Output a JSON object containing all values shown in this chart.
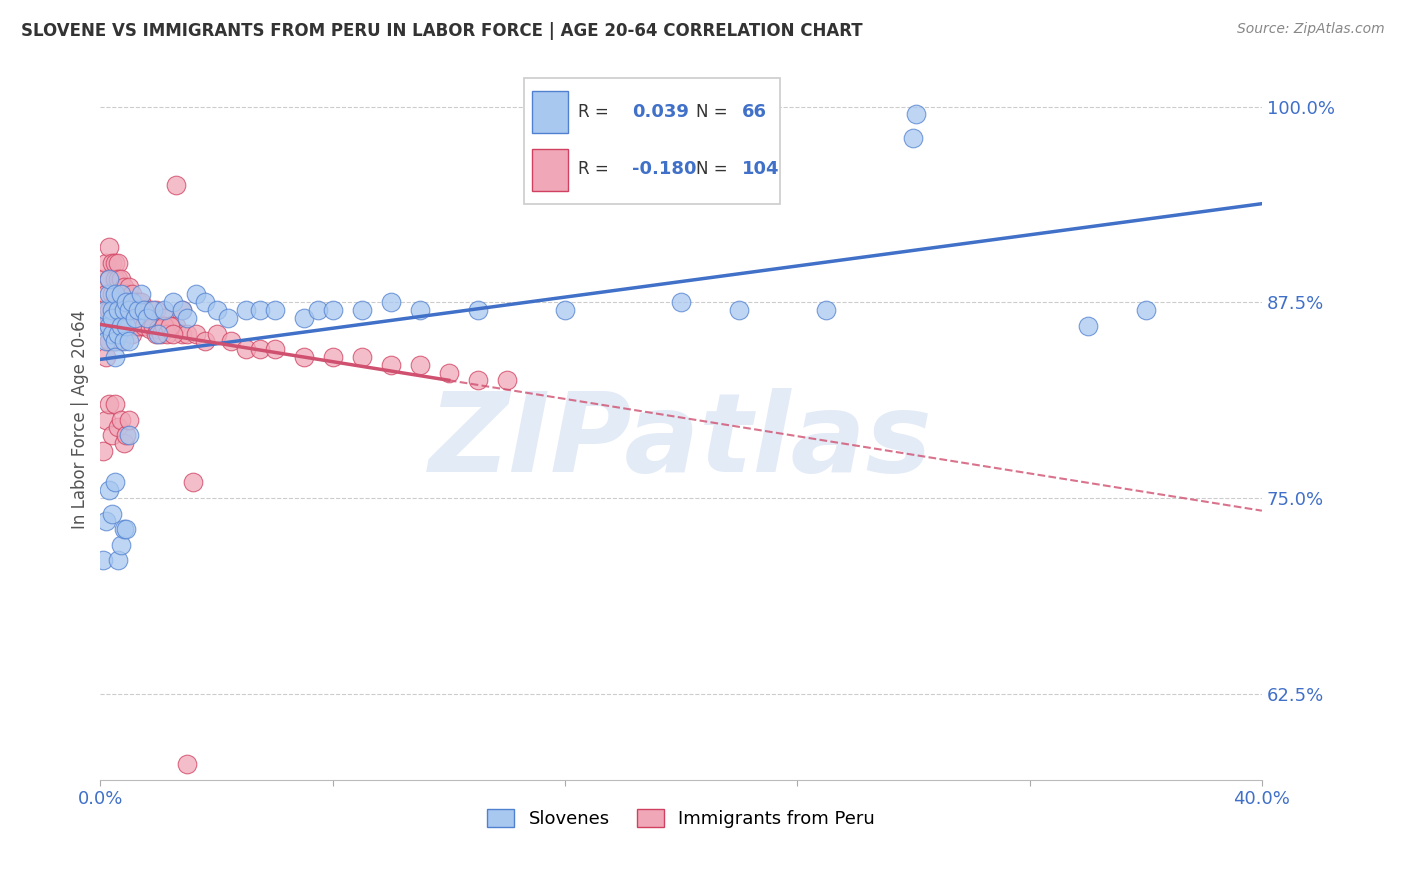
{
  "title": "SLOVENE VS IMMIGRANTS FROM PERU IN LABOR FORCE | AGE 20-64 CORRELATION CHART",
  "source": "Source: ZipAtlas.com",
  "ylabel": "In Labor Force | Age 20-64",
  "xlim": [
    0.0,
    0.4
  ],
  "ylim": [
    0.57,
    1.03
  ],
  "xtick_positions": [
    0.0,
    0.08,
    0.16,
    0.24,
    0.32,
    0.4
  ],
  "xticklabels": [
    "0.0%",
    "",
    "",
    "",
    "",
    "40.0%"
  ],
  "ytick_positions": [
    0.625,
    0.75,
    0.875,
    1.0
  ],
  "ytick_labels": [
    "62.5%",
    "75.0%",
    "87.5%",
    "100.0%"
  ],
  "slovene_R": 0.039,
  "slovene_N": 66,
  "peru_R": -0.18,
  "peru_N": 104,
  "slovene_color": "#a8c8f0",
  "peru_color": "#f0a8b8",
  "slovene_edge": "#5080d0",
  "peru_edge": "#d04060",
  "trendline_slovene_color": "#4070c8",
  "trendline_peru_color": "#d05070",
  "background_color": "#ffffff",
  "grid_color": "#cccccc",
  "watermark_text": "ZIPatlas",
  "slovene_x": [
    0.001,
    0.002,
    0.002,
    0.003,
    0.003,
    0.003,
    0.004,
    0.004,
    0.004,
    0.005,
    0.005,
    0.005,
    0.006,
    0.006,
    0.007,
    0.007,
    0.008,
    0.008,
    0.009,
    0.009,
    0.01,
    0.01,
    0.011,
    0.012,
    0.013,
    0.014,
    0.015,
    0.016,
    0.018,
    0.02,
    0.022,
    0.025,
    0.028,
    0.03,
    0.033,
    0.036,
    0.04,
    0.044,
    0.05,
    0.055,
    0.06,
    0.07,
    0.075,
    0.08,
    0.09,
    0.1,
    0.11,
    0.13,
    0.16,
    0.2,
    0.001,
    0.002,
    0.003,
    0.004,
    0.005,
    0.006,
    0.007,
    0.008,
    0.009,
    0.01,
    0.28,
    0.281,
    0.34,
    0.36,
    0.22,
    0.25
  ],
  "slovene_y": [
    0.86,
    0.87,
    0.85,
    0.88,
    0.89,
    0.86,
    0.87,
    0.855,
    0.865,
    0.85,
    0.88,
    0.84,
    0.87,
    0.855,
    0.88,
    0.86,
    0.87,
    0.85,
    0.875,
    0.86,
    0.87,
    0.85,
    0.875,
    0.865,
    0.87,
    0.88,
    0.87,
    0.865,
    0.87,
    0.855,
    0.87,
    0.875,
    0.87,
    0.865,
    0.88,
    0.875,
    0.87,
    0.865,
    0.87,
    0.87,
    0.87,
    0.865,
    0.87,
    0.87,
    0.87,
    0.875,
    0.87,
    0.87,
    0.87,
    0.875,
    0.71,
    0.735,
    0.755,
    0.74,
    0.76,
    0.71,
    0.72,
    0.73,
    0.73,
    0.79,
    0.98,
    0.995,
    0.86,
    0.87,
    0.87,
    0.87
  ],
  "peru_x": [
    0.001,
    0.001,
    0.002,
    0.002,
    0.002,
    0.003,
    0.003,
    0.003,
    0.003,
    0.004,
    0.004,
    0.004,
    0.005,
    0.005,
    0.005,
    0.005,
    0.006,
    0.006,
    0.006,
    0.006,
    0.007,
    0.007,
    0.007,
    0.007,
    0.008,
    0.008,
    0.008,
    0.009,
    0.009,
    0.01,
    0.01,
    0.01,
    0.011,
    0.011,
    0.012,
    0.012,
    0.013,
    0.013,
    0.014,
    0.014,
    0.015,
    0.016,
    0.017,
    0.018,
    0.019,
    0.02,
    0.022,
    0.024,
    0.026,
    0.028,
    0.03,
    0.033,
    0.036,
    0.04,
    0.045,
    0.05,
    0.055,
    0.06,
    0.07,
    0.08,
    0.09,
    0.1,
    0.11,
    0.12,
    0.13,
    0.14,
    0.002,
    0.003,
    0.004,
    0.005,
    0.006,
    0.007,
    0.008,
    0.009,
    0.01,
    0.011,
    0.012,
    0.013,
    0.014,
    0.015,
    0.016,
    0.017,
    0.018,
    0.019,
    0.02,
    0.021,
    0.022,
    0.023,
    0.024,
    0.025,
    0.001,
    0.002,
    0.003,
    0.004,
    0.005,
    0.006,
    0.007,
    0.008,
    0.009,
    0.01,
    0.026,
    0.028,
    0.03,
    0.032
  ],
  "peru_y": [
    0.89,
    0.87,
    0.9,
    0.88,
    0.86,
    0.91,
    0.89,
    0.87,
    0.85,
    0.9,
    0.88,
    0.86,
    0.9,
    0.89,
    0.87,
    0.85,
    0.9,
    0.89,
    0.875,
    0.86,
    0.89,
    0.875,
    0.865,
    0.85,
    0.885,
    0.875,
    0.865,
    0.88,
    0.86,
    0.885,
    0.875,
    0.86,
    0.88,
    0.865,
    0.875,
    0.86,
    0.875,
    0.86,
    0.875,
    0.86,
    0.87,
    0.865,
    0.87,
    0.865,
    0.87,
    0.86,
    0.865,
    0.86,
    0.86,
    0.855,
    0.855,
    0.855,
    0.85,
    0.855,
    0.85,
    0.845,
    0.845,
    0.845,
    0.84,
    0.84,
    0.84,
    0.835,
    0.835,
    0.83,
    0.825,
    0.825,
    0.84,
    0.85,
    0.86,
    0.875,
    0.87,
    0.87,
    0.865,
    0.86,
    0.86,
    0.855,
    0.865,
    0.86,
    0.87,
    0.86,
    0.865,
    0.858,
    0.86,
    0.855,
    0.858,
    0.855,
    0.86,
    0.855,
    0.86,
    0.855,
    0.78,
    0.8,
    0.81,
    0.79,
    0.81,
    0.795,
    0.8,
    0.785,
    0.79,
    0.8,
    0.95,
    0.87,
    0.58,
    0.76
  ]
}
